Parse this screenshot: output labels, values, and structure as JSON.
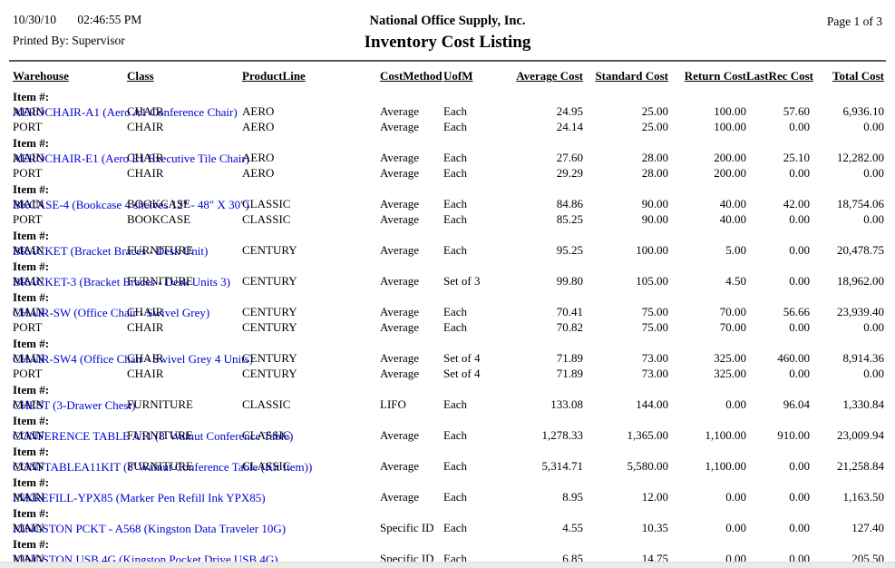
{
  "header": {
    "date": "10/30/10",
    "time": "02:46:55 PM",
    "printed_by": "Printed By: Supervisor",
    "company": "National Office Supply, Inc.",
    "title": "Inventory Cost Listing",
    "page": "Page 1 of 3"
  },
  "colors": {
    "item_link_blue": "#0000d6",
    "rule_gray": "#58595b",
    "bottom_band": "#eceae3"
  },
  "table": {
    "item_label": "Item #:",
    "columns": [
      "Warehouse",
      "Class",
      "ProductLine",
      "CostMethod",
      "UofM",
      "Average Cost",
      "Standard Cost",
      "Return Cost",
      "LastRec Cost",
      "Total Cost"
    ],
    "items": [
      {
        "item": "AEROCHAIR-A1 (Aero A1 Conference Chair)",
        "rows": [
          {
            "warehouse": "MAIN",
            "class": "CHAIR",
            "product_line": "AERO",
            "cost_method": "Average",
            "uofm": "Each",
            "average_cost": "24.95",
            "standard_cost": "25.00",
            "return_cost": "100.00",
            "lastrec_cost": "57.60",
            "total_cost": "6,936.10"
          },
          {
            "warehouse": "PORT",
            "class": "CHAIR",
            "product_line": "AERO",
            "cost_method": "Average",
            "uofm": "Each",
            "average_cost": "24.14",
            "standard_cost": "25.00",
            "return_cost": "100.00",
            "lastrec_cost": "0.00",
            "total_cost": "0.00"
          }
        ]
      },
      {
        "item": "AEROCHAIR-E1 (Aero E1 Executive Tile Chair)",
        "rows": [
          {
            "warehouse": "MAIN",
            "class": "CHAIR",
            "product_line": "AERO",
            "cost_method": "Average",
            "uofm": "Each",
            "average_cost": "27.60",
            "standard_cost": "28.00",
            "return_cost": "200.00",
            "lastrec_cost": "25.10",
            "total_cost": "12,282.00"
          },
          {
            "warehouse": "PORT",
            "class": "CHAIR",
            "product_line": "AERO",
            "cost_method": "Average",
            "uofm": "Each",
            "average_cost": "29.29",
            "standard_cost": "28.00",
            "return_cost": "200.00",
            "lastrec_cost": "0.00",
            "total_cost": "0.00"
          }
        ]
      },
      {
        "item": "BKCASE-4 (Bookcase 4 shelves 12\" - 48\" X 30\")",
        "rows": [
          {
            "warehouse": "MAIN",
            "class": "BOOKCASE",
            "product_line": "CLASSIC",
            "cost_method": "Average",
            "uofm": "Each",
            "average_cost": "84.86",
            "standard_cost": "90.00",
            "return_cost": "40.00",
            "lastrec_cost": "42.00",
            "total_cost": "18,754.06"
          },
          {
            "warehouse": "PORT",
            "class": "BOOKCASE",
            "product_line": "CLASSIC",
            "cost_method": "Average",
            "uofm": "Each",
            "average_cost": "85.25",
            "standard_cost": "90.00",
            "return_cost": "40.00",
            "lastrec_cost": "0.00",
            "total_cost": "0.00"
          }
        ]
      },
      {
        "item": "BRACKET (Bracket Braces - Desk Unit)",
        "rows": [
          {
            "warehouse": "MAIN",
            "class": "FURNITURE",
            "product_line": "CENTURY",
            "cost_method": "Average",
            "uofm": "Each",
            "average_cost": "95.25",
            "standard_cost": "100.00",
            "return_cost": "5.00",
            "lastrec_cost": "0.00",
            "total_cost": "20,478.75"
          }
        ]
      },
      {
        "item": "BRACKET-3 (Bracket Braces - Desk Units 3)",
        "rows": [
          {
            "warehouse": "MAIN",
            "class": "FURNITURE",
            "product_line": "CENTURY",
            "cost_method": "Average",
            "uofm": "Set of 3",
            "average_cost": "99.80",
            "standard_cost": "105.00",
            "return_cost": "4.50",
            "lastrec_cost": "0.00",
            "total_cost": "18,962.00"
          }
        ]
      },
      {
        "item": "CHAIR-SW (Office Chair - Swivel Grey)",
        "rows": [
          {
            "warehouse": "MAIN",
            "class": "CHAIR",
            "product_line": "CENTURY",
            "cost_method": "Average",
            "uofm": "Each",
            "average_cost": "70.41",
            "standard_cost": "75.00",
            "return_cost": "70.00",
            "lastrec_cost": "56.66",
            "total_cost": "23,939.40"
          },
          {
            "warehouse": "PORT",
            "class": "CHAIR",
            "product_line": "CENTURY",
            "cost_method": "Average",
            "uofm": "Each",
            "average_cost": "70.82",
            "standard_cost": "75.00",
            "return_cost": "70.00",
            "lastrec_cost": "0.00",
            "total_cost": "0.00"
          }
        ]
      },
      {
        "item": "CHAIR-SW4 (Office Chair - Swivel Grey 4 Units)",
        "rows": [
          {
            "warehouse": "MAIN",
            "class": "CHAIR",
            "product_line": "CENTURY",
            "cost_method": "Average",
            "uofm": "Set of 4",
            "average_cost": "71.89",
            "standard_cost": "73.00",
            "return_cost": "325.00",
            "lastrec_cost": "460.00",
            "total_cost": "8,914.36"
          },
          {
            "warehouse": "PORT",
            "class": "CHAIR",
            "product_line": "CENTURY",
            "cost_method": "Average",
            "uofm": "Set of 4",
            "average_cost": "71.89",
            "standard_cost": "73.00",
            "return_cost": "325.00",
            "lastrec_cost": "0.00",
            "total_cost": "0.00"
          }
        ]
      },
      {
        "item": "CHEST (3-Drawer Chest)",
        "rows": [
          {
            "warehouse": "MAIN",
            "class": "FURNITURE",
            "product_line": "CLASSIC",
            "cost_method": "LIFO",
            "uofm": "Each",
            "average_cost": "133.08",
            "standard_cost": "144.00",
            "return_cost": "0.00",
            "lastrec_cost": "96.04",
            "total_cost": "1,330.84"
          }
        ]
      },
      {
        "item": "CONFERENCE TABLE A11 (8' Walnut Conference Table)",
        "rows": [
          {
            "warehouse": "MAIN",
            "class": "FURNITURE",
            "product_line": "CLASSIC",
            "cost_method": "Average",
            "uofm": "Each",
            "average_cost": "1,278.33",
            "standard_cost": "1,365.00",
            "return_cost": "1,100.00",
            "lastrec_cost": "910.00",
            "total_cost": "23,009.94"
          }
        ]
      },
      {
        "item": "CONFTABLEA11KIT (8' Walnut Conference Table (Kit Item))",
        "rows": [
          {
            "warehouse": "MAIN",
            "class": "FURNITURE",
            "product_line": "CLASSIC",
            "cost_method": "Average",
            "uofm": "Each",
            "average_cost": "5,314.71",
            "standard_cost": "5,580.00",
            "return_cost": "1,100.00",
            "lastrec_cost": "0.00",
            "total_cost": "21,258.84"
          }
        ]
      },
      {
        "item": "INKREFILL-YPX85 (Marker Pen Refill Ink YPX85)",
        "rows": [
          {
            "warehouse": "MAIN",
            "class": "",
            "product_line": "",
            "cost_method": "Average",
            "uofm": "Each",
            "average_cost": "8.95",
            "standard_cost": "12.00",
            "return_cost": "0.00",
            "lastrec_cost": "0.00",
            "total_cost": "1,163.50"
          }
        ]
      },
      {
        "item": "KINGSTON PCKT - A568 (Kingston Data Traveler 10G)",
        "rows": [
          {
            "warehouse": "MAIN",
            "class": "",
            "product_line": "",
            "cost_method": "Specific ID",
            "uofm": "Each",
            "average_cost": "4.55",
            "standard_cost": "10.35",
            "return_cost": "0.00",
            "lastrec_cost": "0.00",
            "total_cost": "127.40"
          }
        ]
      },
      {
        "item": "KINGSTON USB 4G (Kingston Pocket Drive USB 4G)",
        "rows": [
          {
            "warehouse": "MAIN",
            "class": "",
            "product_line": "",
            "cost_method": "Specific ID",
            "uofm": "Each",
            "average_cost": "6.85",
            "standard_cost": "14.75",
            "return_cost": "0.00",
            "lastrec_cost": "0.00",
            "total_cost": "205.50"
          }
        ]
      }
    ]
  }
}
